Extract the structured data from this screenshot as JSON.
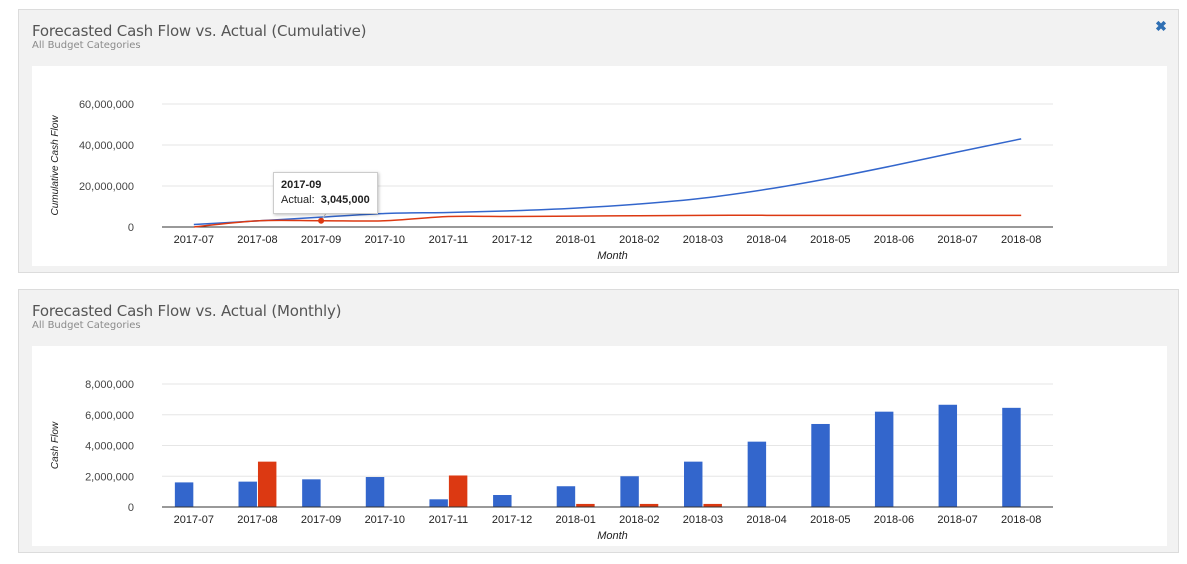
{
  "panels": [
    {
      "title": "Forecasted Cash Flow vs. Actual (Cumulative)",
      "subtitle": "All Budget Categories",
      "close_icon": "✖"
    },
    {
      "title": "Forecasted Cash Flow vs. Actual (Monthly)",
      "subtitle": "All Budget Categories"
    }
  ],
  "tooltip": {
    "title": "2017-09",
    "label": "Actual:",
    "value": "3,045,000"
  },
  "colors": {
    "forecast": "#3366cc",
    "actual": "#dc3912",
    "grid": "#e6e6e6",
    "axis": "#333333"
  },
  "chart_data": [
    {
      "type": "line",
      "xlabel": "Month",
      "ylabel": "Cumulative Cash Flow",
      "ylim": [
        0,
        60000000
      ],
      "yticks": [
        0,
        20000000,
        40000000,
        60000000
      ],
      "ytick_labels": [
        "0",
        "20,000,000",
        "40,000,000",
        "60,000,000"
      ],
      "grid": true,
      "categories": [
        "2017-07",
        "2017-08",
        "2017-09",
        "2017-10",
        "2017-11",
        "2017-12",
        "2018-01",
        "2018-02",
        "2018-03",
        "2018-04",
        "2018-05",
        "2018-06",
        "2018-07",
        "2018-08"
      ],
      "series": [
        {
          "key": "forecast",
          "values": [
            1200000,
            3000000,
            4800000,
            6600000,
            7100000,
            7900000,
            9200000,
            11200000,
            14100000,
            18400000,
            23800000,
            30000000,
            36600000,
            43000000
          ]
        },
        {
          "key": "actual",
          "values": [
            0,
            3000000,
            3045000,
            3045000,
            5100000,
            5100000,
            5300000,
            5500000,
            5700000,
            5700000,
            5700000,
            5700000,
            5700000,
            5700000
          ]
        }
      ]
    },
    {
      "type": "bar",
      "xlabel": "Month",
      "ylabel": "Cash Flow",
      "ylim": [
        0,
        8000000
      ],
      "yticks": [
        0,
        2000000,
        4000000,
        6000000,
        8000000
      ],
      "ytick_labels": [
        "0",
        "2,000,000",
        "4,000,000",
        "6,000,000",
        "8,000,000"
      ],
      "grid": true,
      "categories": [
        "2017-07",
        "2017-08",
        "2017-09",
        "2017-10",
        "2017-11",
        "2017-12",
        "2018-01",
        "2018-02",
        "2018-03",
        "2018-04",
        "2018-05",
        "2018-06",
        "2018-07",
        "2018-08"
      ],
      "series": [
        {
          "key": "forecast",
          "values": [
            1600000,
            1650000,
            1800000,
            1950000,
            500000,
            780000,
            1350000,
            2000000,
            2950000,
            4250000,
            5400000,
            6200000,
            6650000,
            6450000
          ]
        },
        {
          "key": "actual",
          "values": [
            0,
            2950000,
            0,
            0,
            2050000,
            0,
            200000,
            200000,
            200000,
            0,
            0,
            0,
            0,
            0
          ]
        }
      ]
    }
  ]
}
